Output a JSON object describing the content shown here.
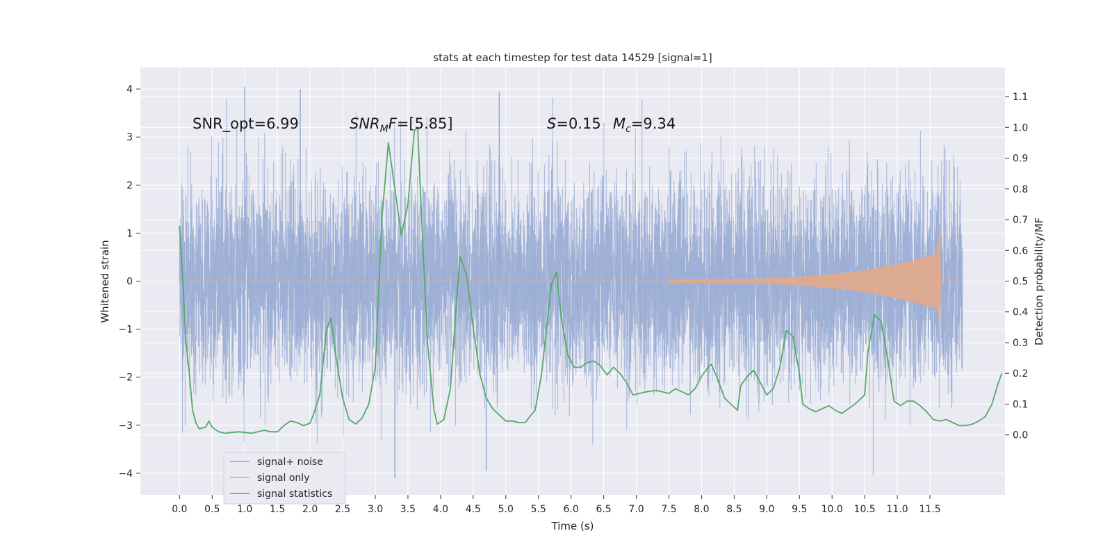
{
  "chart_data": {
    "type": "line",
    "title": "stats at each timestep for test data 14529 [signal=1]",
    "xlabel": "Time (s)",
    "ylabel": "Whitened strain",
    "y2label": "Detection probability/MF",
    "xlim": [
      -0.6,
      12.65
    ],
    "ylim": [
      -4.45,
      4.45
    ],
    "y2lim": [
      -0.195,
      1.195
    ],
    "x_ticks": [
      "0.0",
      "0.5",
      "1.0",
      "1.5",
      "2.0",
      "2.5",
      "3.0",
      "3.5",
      "4.0",
      "4.5",
      "5.0",
      "5.5",
      "6.0",
      "6.5",
      "7.0",
      "7.5",
      "8.0",
      "8.5",
      "9.0",
      "9.5",
      "10.0",
      "10.5",
      "11.0",
      "11.5"
    ],
    "y_ticks": [
      "4",
      "3",
      "2",
      "1",
      "0",
      "−1",
      "−2",
      "−3",
      "−4"
    ],
    "y2_ticks": [
      "1.1",
      "1.0",
      "0.9",
      "0.8",
      "0.7",
      "0.6",
      "0.5",
      "0.4",
      "0.3",
      "0.2",
      "0.1",
      "0.0"
    ],
    "grid": true,
    "legend_position": "lower-left",
    "annotations": {
      "snr_opt": "SNR_opt=6.99",
      "snr_mf": "=[5.85]",
      "s_value": "=0.15",
      "mc_value": "=9.34"
    },
    "colors": {
      "background": "#eaeaf2",
      "grid": "#ffffff",
      "signal_noise": "#8fa5d0",
      "signal_only": "#e3a88a",
      "signal_statistics": "#55a868"
    },
    "series": [
      {
        "name": "signal+ noise",
        "axis": "left",
        "x_range": [
          0.0,
          12.0
        ],
        "noise_std": 1.0,
        "peak_max": 4.05,
        "peak_min": -4.1
      },
      {
        "name": "signal only",
        "axis": "left",
        "x_range": [
          0.0,
          12.0
        ],
        "chirp_onset": 7.5,
        "peak_time": 11.65,
        "peak_amplitude": 1.15,
        "trough_amplitude": -0.95
      },
      {
        "name": "signal statistics",
        "axis": "right",
        "points": [
          [
            0.0,
            0.68
          ],
          [
            0.05,
            0.5
          ],
          [
            0.1,
            0.3
          ],
          [
            0.15,
            0.2
          ],
          [
            0.2,
            0.08
          ],
          [
            0.25,
            0.04
          ],
          [
            0.3,
            0.02
          ],
          [
            0.4,
            0.025
          ],
          [
            0.45,
            0.045
          ],
          [
            0.5,
            0.025
          ],
          [
            0.6,
            0.01
          ],
          [
            0.7,
            0.005
          ],
          [
            0.8,
            0.008
          ],
          [
            0.9,
            0.01
          ],
          [
            1.0,
            0.008
          ],
          [
            1.1,
            0.005
          ],
          [
            1.2,
            0.01
          ],
          [
            1.3,
            0.015
          ],
          [
            1.4,
            0.01
          ],
          [
            1.5,
            0.01
          ],
          [
            1.6,
            0.03
          ],
          [
            1.7,
            0.045
          ],
          [
            1.8,
            0.04
          ],
          [
            1.9,
            0.03
          ],
          [
            2.0,
            0.038
          ],
          [
            2.05,
            0.065
          ],
          [
            2.15,
            0.13
          ],
          [
            2.25,
            0.34
          ],
          [
            2.32,
            0.38
          ],
          [
            2.4,
            0.25
          ],
          [
            2.5,
            0.12
          ],
          [
            2.6,
            0.05
          ],
          [
            2.7,
            0.035
          ],
          [
            2.8,
            0.055
          ],
          [
            2.9,
            0.1
          ],
          [
            3.0,
            0.22
          ],
          [
            3.1,
            0.7
          ],
          [
            3.2,
            0.95
          ],
          [
            3.3,
            0.8
          ],
          [
            3.4,
            0.65
          ],
          [
            3.5,
            0.75
          ],
          [
            3.6,
            0.99
          ],
          [
            3.65,
            1.0
          ],
          [
            3.7,
            0.75
          ],
          [
            3.8,
            0.3
          ],
          [
            3.9,
            0.08
          ],
          [
            3.95,
            0.035
          ],
          [
            4.05,
            0.05
          ],
          [
            4.15,
            0.15
          ],
          [
            4.25,
            0.45
          ],
          [
            4.3,
            0.58
          ],
          [
            4.4,
            0.52
          ],
          [
            4.5,
            0.35
          ],
          [
            4.6,
            0.2
          ],
          [
            4.7,
            0.12
          ],
          [
            4.8,
            0.085
          ],
          [
            4.9,
            0.065
          ],
          [
            5.0,
            0.045
          ],
          [
            5.1,
            0.045
          ],
          [
            5.2,
            0.04
          ],
          [
            5.3,
            0.04
          ],
          [
            5.35,
            0.055
          ],
          [
            5.45,
            0.08
          ],
          [
            5.55,
            0.2
          ],
          [
            5.6,
            0.3
          ],
          [
            5.7,
            0.49
          ],
          [
            5.78,
            0.53
          ],
          [
            5.85,
            0.38
          ],
          [
            5.95,
            0.26
          ],
          [
            6.05,
            0.22
          ],
          [
            6.15,
            0.22
          ],
          [
            6.25,
            0.235
          ],
          [
            6.35,
            0.24
          ],
          [
            6.45,
            0.225
          ],
          [
            6.55,
            0.195
          ],
          [
            6.65,
            0.22
          ],
          [
            6.75,
            0.2
          ],
          [
            6.85,
            0.17
          ],
          [
            6.95,
            0.13
          ],
          [
            7.05,
            0.135
          ],
          [
            7.15,
            0.14
          ],
          [
            7.3,
            0.145
          ],
          [
            7.4,
            0.14
          ],
          [
            7.5,
            0.135
          ],
          [
            7.6,
            0.15
          ],
          [
            7.7,
            0.14
          ],
          [
            7.8,
            0.13
          ],
          [
            7.9,
            0.15
          ],
          [
            8.0,
            0.19
          ],
          [
            8.1,
            0.22
          ],
          [
            8.15,
            0.23
          ],
          [
            8.25,
            0.18
          ],
          [
            8.35,
            0.12
          ],
          [
            8.45,
            0.1
          ],
          [
            8.55,
            0.08
          ],
          [
            8.6,
            0.16
          ],
          [
            8.7,
            0.19
          ],
          [
            8.8,
            0.21
          ],
          [
            8.9,
            0.17
          ],
          [
            9.0,
            0.13
          ],
          [
            9.1,
            0.15
          ],
          [
            9.2,
            0.22
          ],
          [
            9.3,
            0.34
          ],
          [
            9.4,
            0.32
          ],
          [
            9.5,
            0.2
          ],
          [
            9.55,
            0.1
          ],
          [
            9.65,
            0.085
          ],
          [
            9.75,
            0.075
          ],
          [
            9.85,
            0.085
          ],
          [
            9.95,
            0.095
          ],
          [
            10.05,
            0.08
          ],
          [
            10.15,
            0.07
          ],
          [
            10.25,
            0.085
          ],
          [
            10.35,
            0.1
          ],
          [
            10.45,
            0.12
          ],
          [
            10.5,
            0.13
          ],
          [
            10.55,
            0.27
          ],
          [
            10.65,
            0.39
          ],
          [
            10.75,
            0.37
          ],
          [
            10.85,
            0.25
          ],
          [
            10.95,
            0.11
          ],
          [
            11.05,
            0.095
          ],
          [
            11.15,
            0.11
          ],
          [
            11.25,
            0.11
          ],
          [
            11.35,
            0.095
          ],
          [
            11.45,
            0.075
          ],
          [
            11.55,
            0.05
          ],
          [
            11.65,
            0.045
          ],
          [
            11.75,
            0.05
          ],
          [
            11.85,
            0.04
          ],
          [
            11.95,
            0.03
          ],
          [
            12.05,
            0.03
          ],
          [
            12.15,
            0.035
          ],
          [
            12.25,
            0.045
          ],
          [
            12.35,
            0.06
          ],
          [
            12.45,
            0.1
          ],
          [
            12.55,
            0.17
          ],
          [
            12.6,
            0.2
          ]
        ]
      }
    ]
  }
}
